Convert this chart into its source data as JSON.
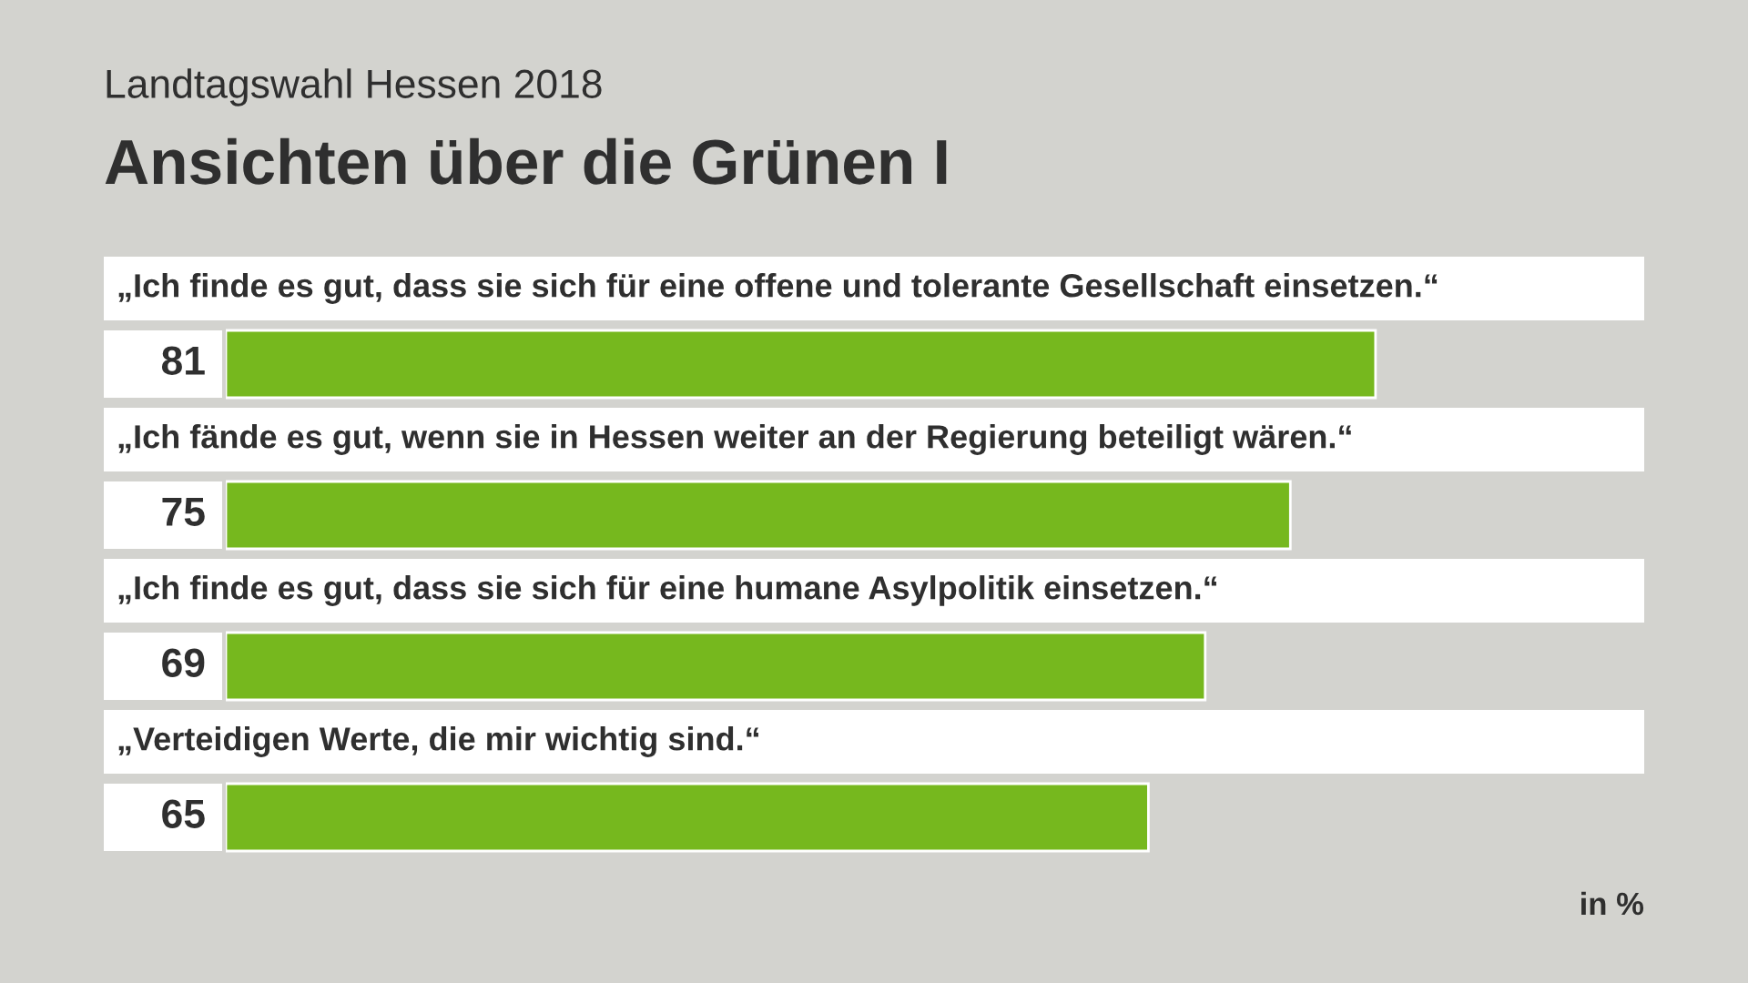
{
  "chart_data": {
    "type": "bar",
    "orientation": "horizontal",
    "subtitle": "Landtagswahl Hessen 2018",
    "title": "Ansichten über die Grünen I",
    "categories": [
      "„Ich finde es gut, dass sie sich für eine offene und tolerante Gesellschaft einsetzen.“",
      "„Ich fände es gut, wenn sie in Hessen weiter an der Regierung beteiligt wären.“",
      "„Ich finde es gut, dass sie sich für eine humane Asylpolitik einsetzen.“",
      "„Verteidigen Werte, die mir wichtig sind.“"
    ],
    "values": [
      81,
      75,
      69,
      65
    ],
    "color": "#76b81e",
    "data_labels": true,
    "tick_labels": false,
    "annotations": [
      "in %"
    ]
  }
}
